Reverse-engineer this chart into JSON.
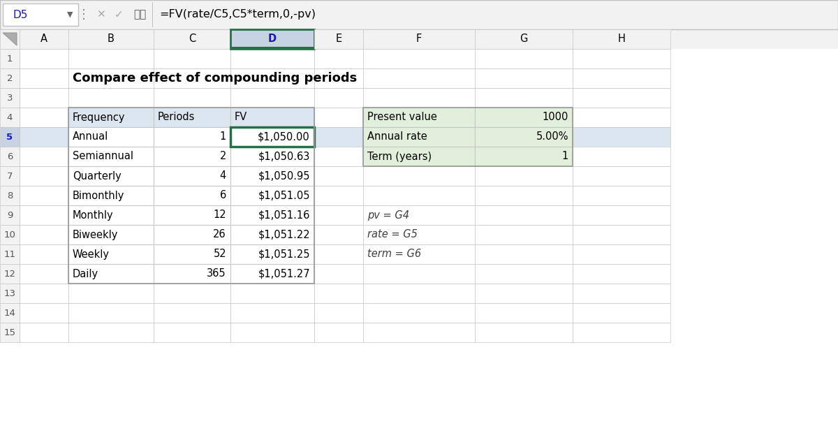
{
  "title": "Compare effect of compounding periods",
  "formula_bar_cell": "D5",
  "formula_bar_text": "=FV(rate/C5,C5*term,0,-pv)",
  "col_headers": [
    "A",
    "B",
    "C",
    "D",
    "E",
    "F",
    "G",
    "H"
  ],
  "main_table_header": [
    "Frequency",
    "Periods",
    "FV"
  ],
  "main_table_data": [
    [
      "Annual",
      "1",
      "$1,050.00"
    ],
    [
      "Semiannual",
      "2",
      "$1,050.63"
    ],
    [
      "Quarterly",
      "4",
      "$1,050.95"
    ],
    [
      "Bimonthly",
      "6",
      "$1,051.05"
    ],
    [
      "Monthly",
      "12",
      "$1,051.16"
    ],
    [
      "Biweekly",
      "26",
      "$1,051.22"
    ],
    [
      "Weekly",
      "52",
      "$1,051.25"
    ],
    [
      "Daily",
      "365",
      "$1,051.27"
    ]
  ],
  "side_table_data": [
    [
      "Present value",
      "1000"
    ],
    [
      "Annual rate",
      "5.00%"
    ],
    [
      "Term (years)",
      "1"
    ]
  ],
  "named_ranges": [
    "pv = G4",
    "rate = G5",
    "term = G6"
  ],
  "header_bg": "#dce6f1",
  "selected_col_bg": "#c7d3e3",
  "selected_cell_border": "#217346",
  "side_table_bg": "#e2efda",
  "grid_color": "#c8c8c8",
  "toolbar_bg": "#f2f2f2",
  "toolbar_border": "#c0c0c0",
  "row_header_bg": "#f2f2f2",
  "selected_row_bg": "#dce6f1",
  "white": "#ffffff",
  "cell_text": "#000000",
  "formula_text_color": "#1f1f9f",
  "named_range_color": "#404040"
}
